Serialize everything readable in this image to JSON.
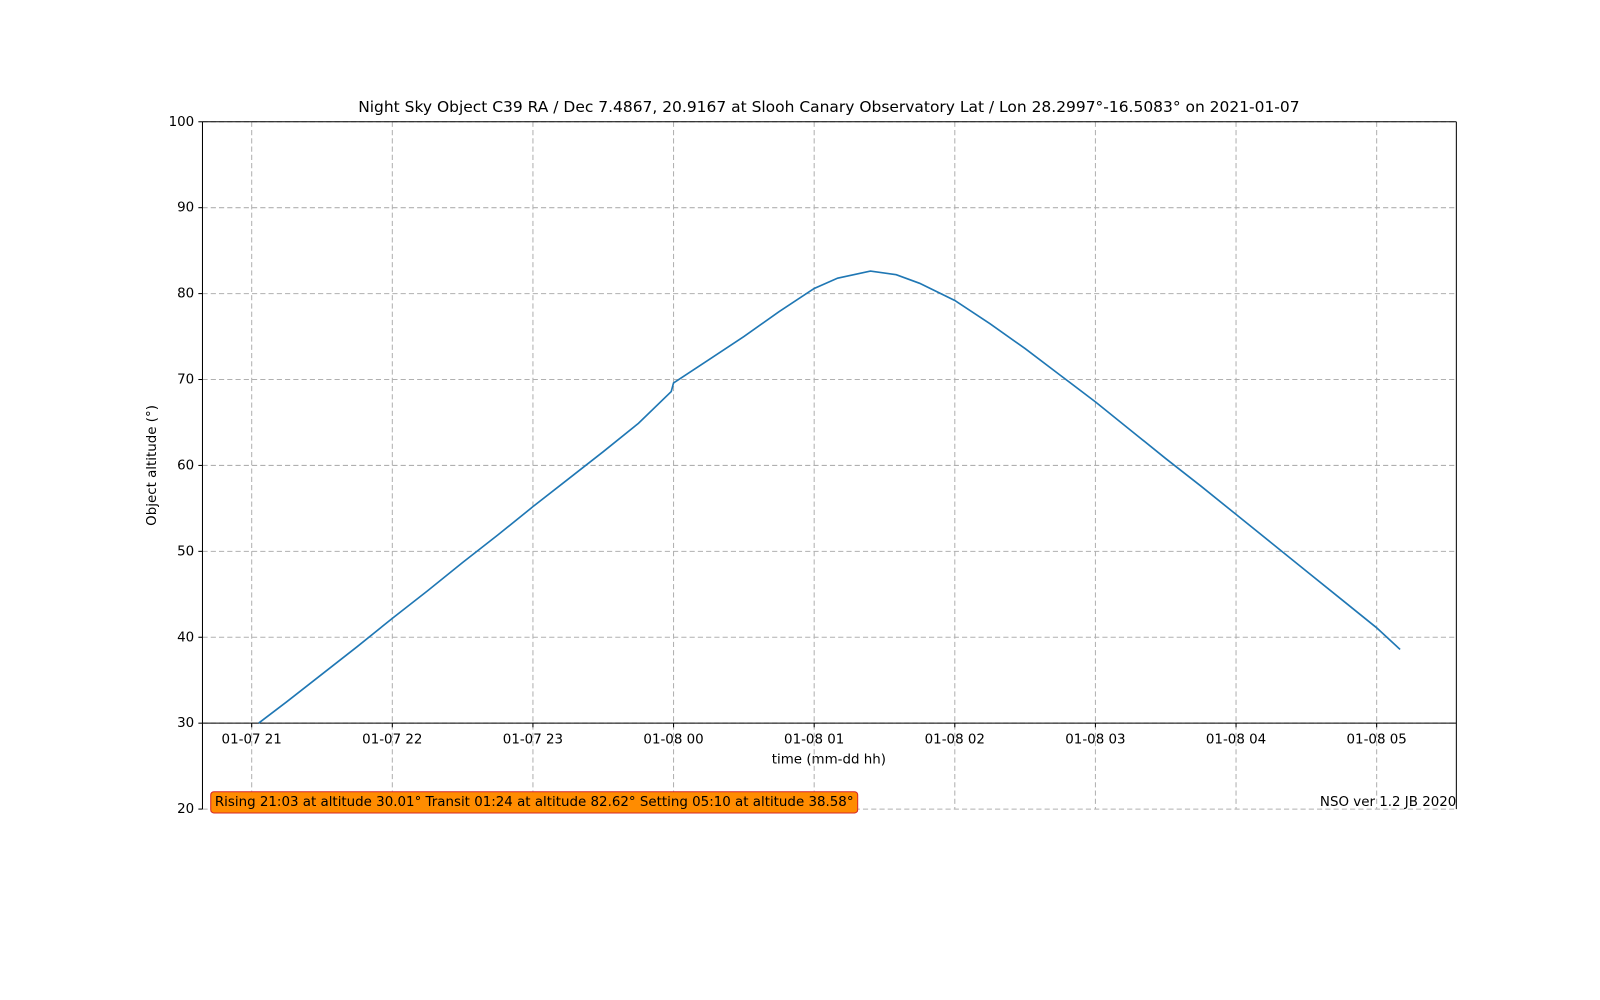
{
  "chart_data": {
    "type": "line",
    "title": "Night Sky Object C39 RA / Dec 7.4867, 20.9167 at Slooh Canary Observatory Lat / Lon 28.2997°-16.5083° on 2021-01-07",
    "x_label": "time (mm-dd hh)",
    "y_label": "Object altitude (°)",
    "annotation": "Rising 21:03 at altitude 30.01° Transit 01:24 at altitude 82.62° Setting 05:10 at altitude 38.58°",
    "footer": "NSO ver 1.2 JB 2020",
    "color": "#1f77b4",
    "annotation_fill": "#ff8c00",
    "annotation_edge": "#d62728",
    "grid": true,
    "x": [
      "2021-01-07T21:03",
      "2021-01-07T21:15",
      "2021-01-07T21:30",
      "2021-01-07T21:45",
      "2021-01-07T22:00",
      "2021-01-07T22:15",
      "2021-01-07T22:30",
      "2021-01-07T22:45",
      "2021-01-07T23:00",
      "2021-01-07T23:15",
      "2021-01-07T23:30",
      "2021-01-07T23:45",
      "2021-01-07T23:59",
      "2021-01-08T00:00",
      "2021-01-08T00:15",
      "2021-01-08T00:30",
      "2021-01-08T00:45",
      "2021-01-08T01:00",
      "2021-01-08T01:10",
      "2021-01-08T01:24",
      "2021-01-08T01:35",
      "2021-01-08T01:45",
      "2021-01-08T02:00",
      "2021-01-08T02:15",
      "2021-01-08T02:30",
      "2021-01-08T02:45",
      "2021-01-08T03:00",
      "2021-01-08T03:15",
      "2021-01-08T03:30",
      "2021-01-08T03:45",
      "2021-01-08T04:00",
      "2021-01-08T04:15",
      "2021-01-08T04:30",
      "2021-01-08T04:45",
      "2021-01-08T05:00",
      "2021-01-08T05:10"
    ],
    "values": [
      30.01,
      32.5,
      35.7,
      38.9,
      42.2,
      45.4,
      48.7,
      51.9,
      55.2,
      58.4,
      61.6,
      64.9,
      68.6,
      69.6,
      72.3,
      75.0,
      77.9,
      80.6,
      81.8,
      82.62,
      82.2,
      81.2,
      79.2,
      76.5,
      73.6,
      70.5,
      67.4,
      64.1,
      60.8,
      57.6,
      54.3,
      51.0,
      47.7,
      44.4,
      41.1,
      38.58
    ],
    "xlim": [
      "2021-01-07T20:39",
      "2021-01-08T05:34"
    ],
    "xticks": [
      {
        "value": "2021-01-07T21:00",
        "label": "01-07 21"
      },
      {
        "value": "2021-01-07T22:00",
        "label": "01-07 22"
      },
      {
        "value": "2021-01-07T23:00",
        "label": "01-07 23"
      },
      {
        "value": "2021-01-08T00:00",
        "label": "01-08 00"
      },
      {
        "value": "2021-01-08T01:00",
        "label": "01-08 01"
      },
      {
        "value": "2021-01-08T02:00",
        "label": "01-08 02"
      },
      {
        "value": "2021-01-08T03:00",
        "label": "01-08 03"
      },
      {
        "value": "2021-01-08T04:00",
        "label": "01-08 04"
      },
      {
        "value": "2021-01-08T05:00",
        "label": "01-08 05"
      }
    ],
    "ylim": [
      20,
      100
    ],
    "yticks": [
      20,
      30,
      40,
      50,
      60,
      70,
      80,
      90,
      100
    ],
    "x_axis_at": 30
  }
}
